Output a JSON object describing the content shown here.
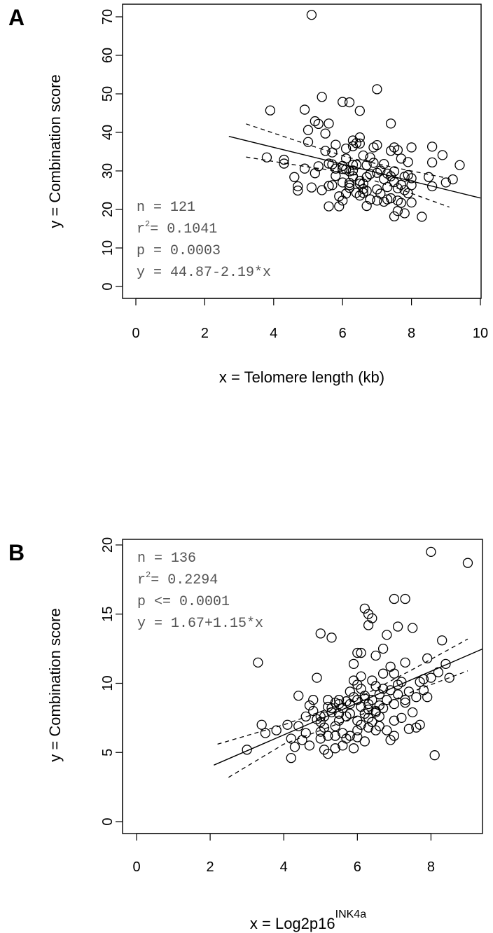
{
  "chart_data": [
    {
      "panel": "A",
      "type": "scatter",
      "xlabel": "x = Telomere length (kb)",
      "ylabel": "y =  Combination score",
      "xlim": [
        0,
        10
      ],
      "ylim": [
        0,
        70
      ],
      "xticks": [
        0,
        2,
        4,
        6,
        8,
        10
      ],
      "yticks": [
        0,
        10,
        20,
        30,
        40,
        50,
        60,
        70
      ],
      "stats": {
        "n_label": "n = 121",
        "r_prefix": "r",
        "r_sup": "2",
        "r_value": "= 0.1041",
        "p_label": "p = 0.0003",
        "eq_label": "y = 44.87-2.19*x"
      },
      "fit": {
        "intercept": 44.87,
        "slope": -2.19,
        "x_range": [
          2.7,
          10
        ]
      },
      "ci_upper": [
        [
          3.2,
          42.2
        ],
        [
          5.0,
          36.8
        ],
        [
          6.2,
          33.4
        ],
        [
          7.5,
          30.9
        ],
        [
          9.1,
          28.0
        ]
      ],
      "ci_lower": [
        [
          3.2,
          33.6
        ],
        [
          4.8,
          31.3
        ],
        [
          6.2,
          29.5
        ],
        [
          7.5,
          25.8
        ],
        [
          9.1,
          20.6
        ]
      ],
      "points": [
        [
          5.1,
          70.5
        ],
        [
          3.9,
          45.7
        ],
        [
          4.9,
          45.9
        ],
        [
          5.4,
          49.2
        ],
        [
          6.0,
          47.9
        ],
        [
          6.2,
          47.8
        ],
        [
          6.5,
          45.6
        ],
        [
          7.0,
          51.2
        ],
        [
          5.2,
          42.9
        ],
        [
          5.6,
          42.3
        ],
        [
          7.4,
          42.3
        ],
        [
          3.8,
          33.5
        ],
        [
          4.3,
          32.9
        ],
        [
          4.3,
          31.9
        ],
        [
          4.6,
          28.4
        ],
        [
          4.7,
          26.0
        ],
        [
          4.7,
          24.9
        ],
        [
          4.9,
          30.6
        ],
        [
          5.0,
          37.5
        ],
        [
          5.0,
          40.6
        ],
        [
          5.1,
          25.7
        ],
        [
          5.2,
          29.4
        ],
        [
          5.3,
          31.2
        ],
        [
          5.3,
          42.2
        ],
        [
          5.4,
          25.0
        ],
        [
          5.5,
          39.7
        ],
        [
          5.5,
          35.2
        ],
        [
          5.6,
          31.9
        ],
        [
          5.6,
          26.1
        ],
        [
          5.6,
          20.8
        ],
        [
          5.7,
          31.7
        ],
        [
          5.7,
          34.8
        ],
        [
          5.7,
          26.3
        ],
        [
          5.8,
          30.6
        ],
        [
          5.8,
          36.8
        ],
        [
          5.8,
          28.7
        ],
        [
          5.9,
          20.8
        ],
        [
          5.9,
          23.4
        ],
        [
          6.0,
          30.5
        ],
        [
          6.0,
          31.3
        ],
        [
          6.0,
          27.0
        ],
        [
          6.0,
          22.3
        ],
        [
          6.1,
          33.2
        ],
        [
          6.1,
          35.8
        ],
        [
          6.1,
          30.4
        ],
        [
          6.1,
          24.1
        ],
        [
          6.2,
          29.9
        ],
        [
          6.2,
          26.9
        ],
        [
          6.2,
          26.3
        ],
        [
          6.2,
          25.6
        ],
        [
          6.3,
          37.9
        ],
        [
          6.3,
          36.4
        ],
        [
          6.3,
          31.6
        ],
        [
          6.3,
          30.1
        ],
        [
          6.3,
          28.6
        ],
        [
          6.4,
          37.2
        ],
        [
          6.4,
          31.6
        ],
        [
          6.4,
          24.3
        ],
        [
          6.5,
          38.7
        ],
        [
          6.5,
          37.1
        ],
        [
          6.5,
          27.4
        ],
        [
          6.5,
          26.7
        ],
        [
          6.5,
          23.6
        ],
        [
          6.6,
          26.7
        ],
        [
          6.6,
          25.3
        ],
        [
          6.6,
          24.3
        ],
        [
          6.7,
          31.5
        ],
        [
          6.7,
          28.4
        ],
        [
          6.7,
          24.8
        ],
        [
          6.7,
          20.9
        ],
        [
          6.8,
          33.5
        ],
        [
          6.8,
          29.2
        ],
        [
          6.8,
          22.6
        ],
        [
          6.9,
          36.1
        ],
        [
          6.9,
          32.1
        ],
        [
          7.0,
          36.7
        ],
        [
          7.0,
          29.5
        ],
        [
          7.0,
          25.2
        ],
        [
          7.0,
          22.3
        ],
        [
          7.1,
          30.1
        ],
        [
          7.1,
          24.1
        ],
        [
          7.2,
          31.8
        ],
        [
          7.2,
          27.9
        ],
        [
          7.2,
          22.0
        ],
        [
          7.3,
          29.3
        ],
        [
          7.3,
          25.8
        ],
        [
          7.3,
          22.6
        ],
        [
          7.4,
          35.2
        ],
        [
          7.4,
          28.6
        ],
        [
          7.4,
          22.9
        ],
        [
          7.5,
          29.9
        ],
        [
          7.5,
          27.1
        ],
        [
          7.5,
          18.2
        ],
        [
          7.6,
          35.4
        ],
        [
          7.6,
          25.5
        ],
        [
          7.6,
          22.3
        ],
        [
          7.6,
          19.6
        ],
        [
          7.7,
          33.2
        ],
        [
          7.7,
          26.4
        ],
        [
          7.7,
          21.7
        ],
        [
          7.8,
          28.5
        ],
        [
          7.8,
          25.0
        ],
        [
          7.8,
          19.0
        ],
        [
          7.9,
          32.3
        ],
        [
          7.9,
          28.9
        ],
        [
          7.9,
          24.2
        ],
        [
          8.0,
          36.1
        ],
        [
          8.0,
          28.1
        ],
        [
          8.0,
          26.3
        ],
        [
          8.0,
          21.8
        ],
        [
          8.3,
          18.1
        ],
        [
          8.5,
          28.4
        ],
        [
          8.6,
          36.3
        ],
        [
          8.6,
          32.2
        ],
        [
          8.6,
          26.0
        ],
        [
          8.9,
          34.1
        ],
        [
          9.0,
          27.0
        ],
        [
          9.2,
          27.8
        ],
        [
          9.4,
          31.5
        ],
        [
          7.5,
          36.1
        ],
        [
          6.6,
          34.0
        ]
      ]
    },
    {
      "panel": "B",
      "type": "scatter",
      "xlabel": "x = Log2p16",
      "xlabel_sup": "INK4a",
      "ylabel": "y =  Combination score",
      "xlim": [
        0,
        9.4
      ],
      "ylim": [
        0,
        20
      ],
      "xticks": [
        0,
        2,
        4,
        6,
        8
      ],
      "yticks": [
        0,
        5,
        10,
        15,
        20
      ],
      "stats": {
        "n_label": "n = 136",
        "r_prefix": "r",
        "r_sup": "2",
        "r_value": "= 0.2294",
        "p_label": "p <= 0.0001",
        "eq_label": "y = 1.67+1.15*x"
      },
      "fit": {
        "intercept": 1.67,
        "slope": 1.15,
        "x_range": [
          2.1,
          9.4
        ]
      },
      "ci_upper": [
        [
          2.2,
          5.6
        ],
        [
          4.0,
          7.0
        ],
        [
          6.0,
          8.9
        ],
        [
          7.5,
          11.0
        ],
        [
          9.0,
          13.2
        ]
      ],
      "ci_lower": [
        [
          2.5,
          3.2
        ],
        [
          4.0,
          5.6
        ],
        [
          6.0,
          7.6
        ],
        [
          7.5,
          9.4
        ],
        [
          9.0,
          10.9
        ]
      ],
      "points": [
        [
          3.0,
          5.2
        ],
        [
          3.3,
          11.5
        ],
        [
          3.4,
          7.0
        ],
        [
          3.5,
          6.4
        ],
        [
          3.8,
          6.6
        ],
        [
          4.1,
          7.0
        ],
        [
          4.2,
          6.0
        ],
        [
          4.2,
          4.6
        ],
        [
          4.3,
          5.4
        ],
        [
          4.4,
          9.1
        ],
        [
          4.5,
          5.9
        ],
        [
          4.6,
          6.4
        ],
        [
          4.7,
          8.4
        ],
        [
          4.8,
          8.8
        ],
        [
          4.9,
          10.4
        ],
        [
          5.0,
          13.6
        ],
        [
          5.0,
          7.6
        ],
        [
          5.0,
          7.2
        ],
        [
          5.0,
          6.5
        ],
        [
          5.0,
          6.0
        ],
        [
          5.1,
          5.2
        ],
        [
          5.1,
          7.6
        ],
        [
          5.2,
          8.8
        ],
        [
          5.2,
          4.9
        ],
        [
          5.3,
          13.3
        ],
        [
          5.3,
          8.2
        ],
        [
          5.3,
          7.9
        ],
        [
          5.4,
          5.3
        ],
        [
          5.4,
          6.9
        ],
        [
          5.5,
          8.8
        ],
        [
          5.5,
          8.5
        ],
        [
          5.6,
          6.4
        ],
        [
          5.6,
          5.5
        ],
        [
          5.7,
          7.6
        ],
        [
          5.7,
          6.0
        ],
        [
          5.8,
          9.4
        ],
        [
          5.8,
          7.8
        ],
        [
          5.8,
          6.2
        ],
        [
          5.9,
          11.4
        ],
        [
          5.9,
          10.2
        ],
        [
          5.9,
          5.3
        ],
        [
          6.0,
          12.2
        ],
        [
          6.0,
          8.8
        ],
        [
          6.0,
          7.3
        ],
        [
          6.0,
          6.6
        ],
        [
          6.1,
          12.2
        ],
        [
          6.1,
          9.6
        ],
        [
          6.1,
          7.0
        ],
        [
          6.2,
          15.4
        ],
        [
          6.2,
          9.1
        ],
        [
          6.2,
          7.8
        ],
        [
          6.2,
          5.8
        ],
        [
          6.3,
          15.0
        ],
        [
          6.3,
          14.2
        ],
        [
          6.3,
          8.5
        ],
        [
          6.3,
          7.5
        ],
        [
          6.4,
          14.7
        ],
        [
          6.4,
          10.2
        ],
        [
          6.4,
          8.8
        ],
        [
          6.5,
          12.0
        ],
        [
          6.5,
          9.8
        ],
        [
          6.5,
          8.0
        ],
        [
          6.5,
          6.6
        ],
        [
          6.6,
          9.2
        ],
        [
          6.6,
          7.6
        ],
        [
          6.7,
          12.5
        ],
        [
          6.7,
          10.7
        ],
        [
          6.7,
          8.2
        ],
        [
          6.8,
          13.5
        ],
        [
          6.8,
          6.6
        ],
        [
          6.9,
          11.2
        ],
        [
          6.9,
          5.9
        ],
        [
          7.0,
          16.1
        ],
        [
          7.0,
          10.7
        ],
        [
          7.0,
          7.3
        ],
        [
          7.1,
          14.1
        ],
        [
          7.1,
          9.2
        ],
        [
          7.2,
          7.5
        ],
        [
          7.3,
          16.1
        ],
        [
          7.3,
          11.5
        ],
        [
          7.3,
          8.6
        ],
        [
          7.4,
          6.7
        ],
        [
          7.5,
          14.0
        ],
        [
          7.6,
          9.0
        ],
        [
          7.6,
          6.8
        ],
        [
          7.7,
          10.1
        ],
        [
          7.7,
          7.0
        ],
        [
          7.8,
          10.3
        ],
        [
          7.9,
          11.8
        ],
        [
          7.9,
          9.0
        ],
        [
          8.0,
          19.5
        ],
        [
          8.0,
          10.4
        ],
        [
          8.1,
          4.8
        ],
        [
          8.2,
          10.8
        ],
        [
          8.3,
          13.1
        ],
        [
          8.4,
          11.4
        ],
        [
          8.5,
          10.4
        ],
        [
          9.0,
          18.7
        ],
        [
          5.2,
          8.3
        ],
        [
          5.5,
          7.3
        ],
        [
          5.6,
          8.2
        ],
        [
          5.8,
          8.5
        ],
        [
          5.9,
          9.0
        ],
        [
          6.0,
          9.9
        ],
        [
          6.1,
          8.3
        ],
        [
          6.2,
          8.9
        ],
        [
          6.3,
          8.1
        ],
        [
          6.4,
          7.2
        ],
        [
          6.5,
          7.9
        ],
        [
          6.6,
          8.4
        ],
        [
          6.7,
          9.6
        ],
        [
          6.8,
          8.8
        ],
        [
          6.9,
          9.5
        ],
        [
          7.0,
          8.5
        ],
        [
          7.1,
          9.9
        ],
        [
          7.2,
          10.1
        ],
        [
          7.3,
          8.8
        ],
        [
          7.4,
          9.4
        ],
        [
          4.6,
          7.6
        ],
        [
          4.8,
          8.0
        ],
        [
          4.9,
          7.4
        ],
        [
          5.1,
          6.8
        ],
        [
          5.2,
          6.2
        ],
        [
          5.4,
          6.2
        ],
        [
          5.5,
          7.8
        ],
        [
          5.7,
          8.7
        ],
        [
          6.0,
          6.1
        ],
        [
          6.3,
          6.8
        ],
        [
          6.6,
          6.9
        ],
        [
          7.0,
          6.2
        ],
        [
          7.5,
          7.9
        ],
        [
          7.8,
          9.5
        ],
        [
          4.4,
          6.9
        ],
        [
          4.7,
          5.5
        ],
        [
          5.4,
          8.6
        ],
        [
          6.1,
          10.5
        ]
      ]
    }
  ]
}
